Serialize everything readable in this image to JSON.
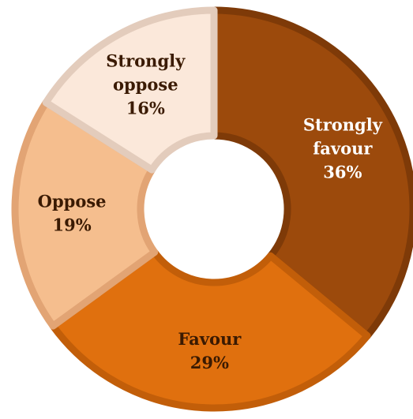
{
  "chart_data": {
    "type": "pie",
    "donut": true,
    "title": "",
    "slices": [
      {
        "category": "Strongly favour",
        "label_lines": [
          "Strongly",
          "favour"
        ],
        "pct_label": "36%",
        "value": 36,
        "fill": "#9C4A0C",
        "stroke": "#7E3A08",
        "text_color": "#FFFFFF"
      },
      {
        "category": "Favour",
        "label_lines": [
          "Favour"
        ],
        "pct_label": "29%",
        "value": 29,
        "fill": "#E0700E",
        "stroke": "#C25E09",
        "text_color": "#3A1A02"
      },
      {
        "category": "Oppose",
        "label_lines": [
          "Oppose"
        ],
        "pct_label": "19%",
        "value": 19,
        "fill": "#F5BE8E",
        "stroke": "#E2A474",
        "text_color": "#3A1A02"
      },
      {
        "category": "Strongly oppose",
        "label_lines": [
          "Strongly",
          "oppose"
        ],
        "pct_label": "16%",
        "value": 16,
        "fill": "#FBE8DA",
        "stroke": "#E3CCBC",
        "text_color": "#3A1A02"
      }
    ]
  }
}
